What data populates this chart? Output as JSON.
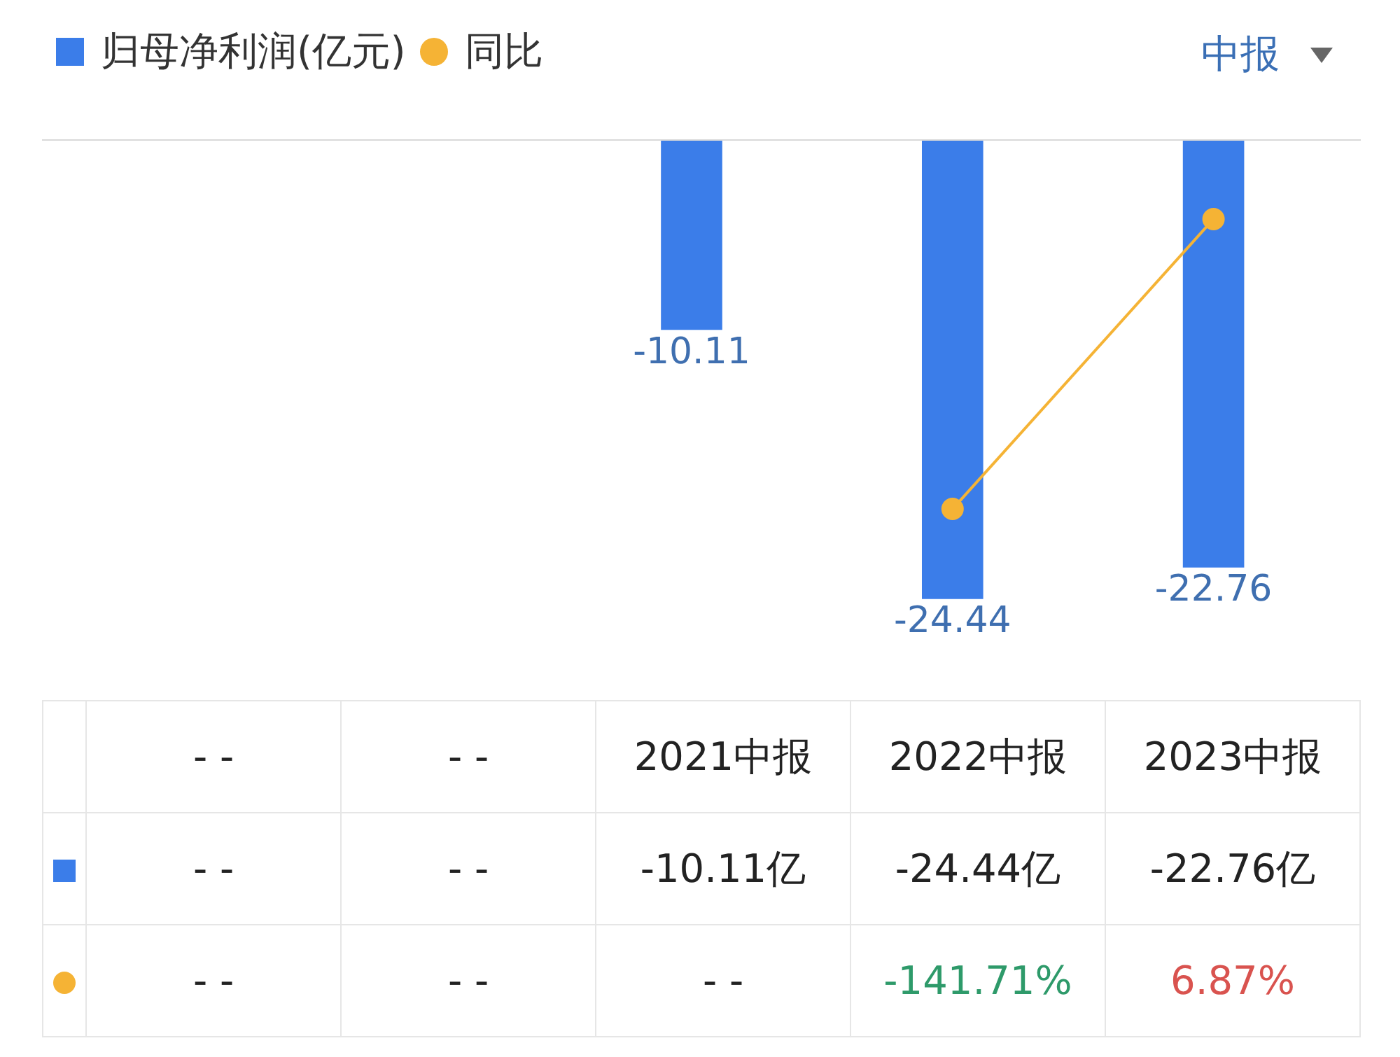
{
  "chart_data": {
    "type": "bar",
    "categories": [
      "- -",
      "- -",
      "2021中报",
      "2022中报",
      "2023中报"
    ],
    "series": [
      {
        "name": "归母净利润(亿元)",
        "color": "#3b7de9",
        "values": [
          null,
          null,
          -10.11,
          -24.44,
          -22.76
        ],
        "value_labels": [
          "- -",
          "- -",
          "-10.11亿",
          "-24.44亿",
          "-22.76亿"
        ]
      },
      {
        "name": "同比",
        "type": "line",
        "axis": "y2",
        "color": "#f5b335",
        "marker": "circle",
        "values": [
          null,
          null,
          null,
          -141.71,
          6.87
        ],
        "value_labels": [
          "- -",
          "- -",
          "- -",
          "-141.71%",
          "6.87%"
        ]
      }
    ],
    "legend": "top left",
    "tick_labels": false,
    "annotations": [
      "中报",
      {
        "text": "-10.11",
        "x": "2021中报",
        "y": -10.11
      },
      {
        "text": "-24.44",
        "x": "2022中报",
        "y": -24.44
      },
      {
        "text": "-22.76",
        "x": "2023中报",
        "y": -22.76
      }
    ]
  }
}
